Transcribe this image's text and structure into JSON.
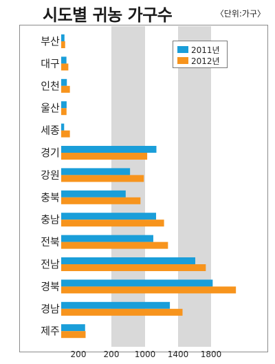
{
  "header": {
    "title": "시도별 귀농 가구수",
    "unit": "〈단위:가구〉"
  },
  "colors": {
    "series_2011": "#1a9ed9",
    "series_2012": "#f7941d",
    "band": "#d9d9d9",
    "text": "#222222"
  },
  "chart_data": {
    "type": "bar",
    "orientation": "horizontal",
    "title": "시도별 귀농 가구수",
    "unit": "〈단위:가구〉",
    "categories": [
      "부산",
      "대구",
      "인천",
      "울산",
      "세종",
      "경기",
      "강원",
      "충북",
      "충남",
      "전북",
      "전남",
      "경북",
      "경남",
      "제주"
    ],
    "series": [
      {
        "name": "2011년",
        "values": [
          40,
          64,
          69,
          66,
          36,
          1159,
          838,
          785,
          1155,
          1121,
          1632,
          1844,
          1323,
          291
        ]
      },
      {
        "name": "2012년",
        "values": [
          48,
          87,
          106,
          65,
          106,
          1047,
          1006,
          965,
          1252,
          1300,
          1760,
          2127,
          1477,
          297
        ]
      }
    ],
    "xticks": [
      "200",
      "200",
      "1000",
      "1400",
      "1800"
    ],
    "xlim": [
      0,
      2150
    ],
    "grid": "alternating vertical bands",
    "legend_position": "top-right"
  }
}
